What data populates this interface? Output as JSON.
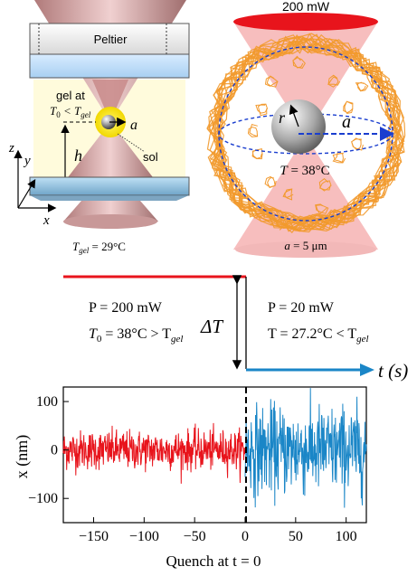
{
  "left_panel": {
    "peltier_label": "Peltier",
    "gel_label_line1": "gel at",
    "gel_label_T0": "T",
    "gel_label_T0_sub": "0",
    "gel_label_lt": " < T",
    "gel_label_gel_sub": "gel",
    "a_label": "a",
    "sol_label": "sol",
    "h_label": "h",
    "axis_z": "z",
    "axis_y": "y",
    "axis_x": "x",
    "caption_T": "T",
    "caption_sub": "gel",
    "caption_value": " = 29°C"
  },
  "right_panel": {
    "power_label": "200 mW",
    "r_label": "r",
    "a_label": "a",
    "temp_T": "T",
    "temp_value": " = 38°C",
    "caption_a": "a",
    "caption_value": " = 5 μm"
  },
  "protocol": {
    "left_P": "P = 200 mW",
    "left_T_prefix": "T",
    "left_T_sub": "0",
    "left_T_mid": " = 38°C > T",
    "left_T_gel": "gel",
    "delta_T": "ΔT",
    "right_P": "P = 20 mW",
    "right_T": "T = 27.2°C < T",
    "right_T_gel": "gel",
    "time_axis": "t (s)"
  },
  "colors": {
    "before": "#e8141c",
    "after": "#1a86c7",
    "fiber": "#f29a2e",
    "beam": "#f4a0a0"
  },
  "chart_data": {
    "type": "line",
    "ylabel": "x (nm)",
    "xlabel": "Quench at t = 0",
    "xlim": [
      -180,
      120
    ],
    "ylim": [
      -150,
      130
    ],
    "xticks": [
      -150,
      -100,
      -50,
      0,
      50,
      100
    ],
    "yticks": [
      -100,
      0,
      100
    ],
    "series": [
      {
        "x_start": -180,
        "x_end": 0,
        "std": 20,
        "color": "#e8141c"
      },
      {
        "x_start": 0,
        "x_end": 120,
        "std": 45,
        "color": "#1a86c7"
      }
    ]
  }
}
